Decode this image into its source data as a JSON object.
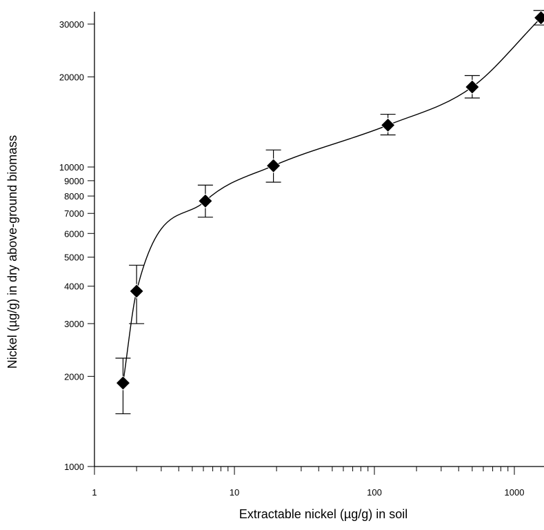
{
  "chart_data": {
    "type": "scatter",
    "title": "",
    "xlabel": "Extractable nickel (µg/g) in soil",
    "ylabel": "Nickel (µg/g) in dry above-ground biomass",
    "x_scale": "log",
    "y_scale": "log",
    "xlim": [
      1,
      1600
    ],
    "ylim": [
      1000,
      33000
    ],
    "x_ticks": [
      {
        "value": 1,
        "label": "1"
      },
      {
        "value": 10,
        "label": "10"
      },
      {
        "value": 100,
        "label": "100"
      },
      {
        "value": 1000,
        "label": "1000"
      }
    ],
    "y_ticks": [
      {
        "value": 1000,
        "label": "1000"
      },
      {
        "value": 2000,
        "label": "2000"
      },
      {
        "value": 3000,
        "label": "3000"
      },
      {
        "value": 4000,
        "label": "4000"
      },
      {
        "value": 5000,
        "label": "5000"
      },
      {
        "value": 6000,
        "label": "6000"
      },
      {
        "value": 7000,
        "label": "7000"
      },
      {
        "value": 8000,
        "label": "8000"
      },
      {
        "value": 9000,
        "label": "9000"
      },
      {
        "value": 10000,
        "label": "10000"
      },
      {
        "value": 20000,
        "label": "20000"
      },
      {
        "value": 30000,
        "label": "30000"
      }
    ],
    "points": [
      {
        "x": 1.6,
        "y": 1900,
        "y_low": 1500,
        "y_high": 2300
      },
      {
        "x": 2.0,
        "y": 3850,
        "y_low": 3000,
        "y_high": 4700
      },
      {
        "x": 6.2,
        "y": 7700,
        "y_low": 6800,
        "y_high": 8700
      },
      {
        "x": 19,
        "y": 10100,
        "y_low": 8900,
        "y_high": 11400
      },
      {
        "x": 125,
        "y": 13800,
        "y_low": 12800,
        "y_high": 15000
      },
      {
        "x": 500,
        "y": 18500,
        "y_low": 17000,
        "y_high": 20200
      },
      {
        "x": 1550,
        "y": 31500,
        "y_low": 29800,
        "y_high": 33300
      }
    ],
    "fit_curve": true,
    "marker": "filled-diamond",
    "colors": {
      "marker": "#000000",
      "line": "#000000"
    },
    "grid": false,
    "legend": "none"
  }
}
